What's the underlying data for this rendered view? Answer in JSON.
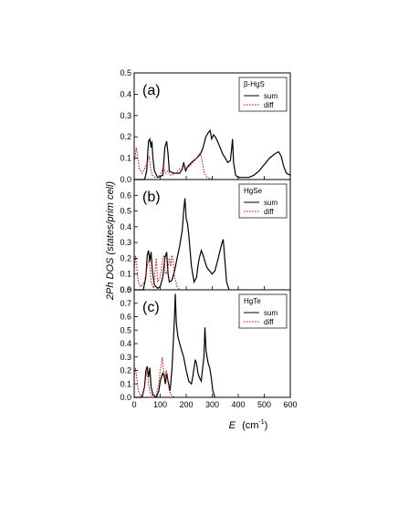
{
  "figure": {
    "ylabel": "2Ph DOS (states/prim cell)",
    "xlabel_main": "E",
    "xlabel_unit": "(cm",
    "xlabel_exp": "-1",
    "xlabel_close": ")"
  },
  "chart_data": [
    {
      "type": "line",
      "panel_label": "(a)",
      "legend_title": "β-HgS",
      "xlim": [
        0,
        600
      ],
      "ylim": [
        0,
        0.5
      ],
      "x_ticks": [
        0,
        100,
        200,
        300,
        400,
        500,
        600
      ],
      "y_ticks": [
        0.0,
        0.1,
        0.2,
        0.3,
        0.4,
        0.5
      ],
      "y_tick_labels": [
        "0.0",
        "0.1",
        "0.2",
        "0.3",
        "0.4",
        "0.5"
      ],
      "series": [
        {
          "name": "sum",
          "color": "#000000",
          "dash": "solid",
          "points": [
            [
              0,
              0
            ],
            [
              40,
              0
            ],
            [
              48,
              0.04
            ],
            [
              55,
              0.18
            ],
            [
              60,
              0.19
            ],
            [
              65,
              0.15
            ],
            [
              68,
              0.18
            ],
            [
              72,
              0.1
            ],
            [
              78,
              0.04
            ],
            [
              90,
              0.01
            ],
            [
              110,
              0.02
            ],
            [
              118,
              0.15
            ],
            [
              125,
              0.18
            ],
            [
              130,
              0.12
            ],
            [
              135,
              0.04
            ],
            [
              150,
              0.03
            ],
            [
              175,
              0.03
            ],
            [
              185,
              0.05
            ],
            [
              190,
              0.08
            ],
            [
              198,
              0.04
            ],
            [
              205,
              0.06
            ],
            [
              220,
              0.08
            ],
            [
              240,
              0.1
            ],
            [
              255,
              0.12
            ],
            [
              265,
              0.15
            ],
            [
              275,
              0.2
            ],
            [
              285,
              0.22
            ],
            [
              292,
              0.23
            ],
            [
              298,
              0.19
            ],
            [
              305,
              0.21
            ],
            [
              312,
              0.2
            ],
            [
              320,
              0.18
            ],
            [
              330,
              0.15
            ],
            [
              340,
              0.12
            ],
            [
              350,
              0.1
            ],
            [
              360,
              0.08
            ],
            [
              370,
              0.09
            ],
            [
              375,
              0.15
            ],
            [
              378,
              0.19
            ],
            [
              382,
              0.08
            ],
            [
              390,
              0.02
            ],
            [
              400,
              0.01
            ],
            [
              420,
              0.01
            ],
            [
              440,
              0.01
            ],
            [
              460,
              0.02
            ],
            [
              480,
              0.04
            ],
            [
              500,
              0.07
            ],
            [
              520,
              0.1
            ],
            [
              540,
              0.12
            ],
            [
              555,
              0.13
            ],
            [
              565,
              0.11
            ],
            [
              575,
              0.06
            ],
            [
              585,
              0.03
            ],
            [
              600,
              0.02
            ]
          ]
        },
        {
          "name": "diff",
          "color": "#cc0000",
          "dash": "dot",
          "points": [
            [
              0,
              0.08
            ],
            [
              8,
              0.15
            ],
            [
              14,
              0.1
            ],
            [
              20,
              0.05
            ],
            [
              30,
              0.03
            ],
            [
              40,
              0.05
            ],
            [
              50,
              0.08
            ],
            [
              58,
              0.11
            ],
            [
              63,
              0.05
            ],
            [
              70,
              0.02
            ],
            [
              80,
              0.01
            ],
            [
              100,
              0.02
            ],
            [
              112,
              0.06
            ],
            [
              120,
              0.03
            ],
            [
              130,
              0.04
            ],
            [
              140,
              0.02
            ],
            [
              160,
              0.03
            ],
            [
              175,
              0.05
            ],
            [
              185,
              0.05
            ],
            [
              192,
              0.07
            ],
            [
              198,
              0.05
            ],
            [
              210,
              0.06
            ],
            [
              225,
              0.08
            ],
            [
              240,
              0.1
            ],
            [
              250,
              0.12
            ],
            [
              258,
              0.11
            ],
            [
              265,
              0.06
            ],
            [
              270,
              0.03
            ],
            [
              280,
              0.01
            ],
            [
              300,
              0
            ]
          ]
        }
      ]
    },
    {
      "type": "line",
      "panel_label": "(b)",
      "legend_title": "HgSe",
      "xlim": [
        0,
        600
      ],
      "ylim": [
        0,
        0.7
      ],
      "x_ticks": [
        0,
        100,
        200,
        300,
        400,
        500,
        600
      ],
      "y_ticks": [
        0.0,
        0.1,
        0.2,
        0.3,
        0.4,
        0.5,
        0.6
      ],
      "y_tick_labels": [
        "0.0",
        "0.1",
        "0.2",
        "0.3",
        "0.4",
        "0.5",
        "0.6"
      ],
      "series": [
        {
          "name": "sum",
          "color": "#000000",
          "dash": "solid",
          "points": [
            [
              0,
              0
            ],
            [
              35,
              0
            ],
            [
              45,
              0.08
            ],
            [
              50,
              0.22
            ],
            [
              55,
              0.25
            ],
            [
              60,
              0.18
            ],
            [
              65,
              0.24
            ],
            [
              70,
              0.12
            ],
            [
              78,
              0.03
            ],
            [
              90,
              0.01
            ],
            [
              100,
              0.02
            ],
            [
              110,
              0.08
            ],
            [
              118,
              0.2
            ],
            [
              125,
              0.24
            ],
            [
              130,
              0.1
            ],
            [
              135,
              0.05
            ],
            [
              145,
              0.06
            ],
            [
              155,
              0.12
            ],
            [
              165,
              0.2
            ],
            [
              175,
              0.28
            ],
            [
              185,
              0.38
            ],
            [
              190,
              0.5
            ],
            [
              195,
              0.58
            ],
            [
              200,
              0.45
            ],
            [
              205,
              0.42
            ],
            [
              210,
              0.35
            ],
            [
              220,
              0.15
            ],
            [
              230,
              0.05
            ],
            [
              240,
              0.08
            ],
            [
              245,
              0.15
            ],
            [
              250,
              0.2
            ],
            [
              258,
              0.25
            ],
            [
              265,
              0.22
            ],
            [
              272,
              0.18
            ],
            [
              280,
              0.14
            ],
            [
              290,
              0.12
            ],
            [
              300,
              0.1
            ],
            [
              310,
              0.12
            ],
            [
              320,
              0.18
            ],
            [
              330,
              0.25
            ],
            [
              338,
              0.3
            ],
            [
              342,
              0.32
            ],
            [
              348,
              0.2
            ],
            [
              355,
              0.05
            ],
            [
              365,
              0
            ]
          ]
        },
        {
          "name": "diff",
          "color": "#cc0000",
          "dash": "dot",
          "points": [
            [
              0,
              0.12
            ],
            [
              5,
              0.22
            ],
            [
              10,
              0.15
            ],
            [
              15,
              0.05
            ],
            [
              25,
              0.02
            ],
            [
              40,
              0.05
            ],
            [
              50,
              0.15
            ],
            [
              58,
              0.2
            ],
            [
              65,
              0.05
            ],
            [
              75,
              0.01
            ],
            [
              80,
              0.12
            ],
            [
              85,
              0.2
            ],
            [
              90,
              0.05
            ],
            [
              100,
              0.08
            ],
            [
              110,
              0.2
            ],
            [
              115,
              0.22
            ],
            [
              120,
              0.1
            ],
            [
              128,
              0.12
            ],
            [
              135,
              0.2
            ],
            [
              140,
              0.15
            ],
            [
              145,
              0.22
            ],
            [
              150,
              0.18
            ],
            [
              155,
              0.08
            ],
            [
              165,
              0.02
            ],
            [
              175,
              0
            ]
          ]
        }
      ]
    },
    {
      "type": "line",
      "panel_label": "(c)",
      "legend_title": "HgTe",
      "xlim": [
        0,
        600
      ],
      "ylim": [
        0,
        0.8
      ],
      "x_ticks": [
        0,
        100,
        200,
        300,
        400,
        500,
        600
      ],
      "y_ticks": [
        0.0,
        0.1,
        0.2,
        0.3,
        0.4,
        0.5,
        0.6,
        0.7,
        0.8
      ],
      "y_tick_labels": [
        "0.0",
        "0.1",
        "0.2",
        "0.3",
        "0.4",
        "0.5",
        "0.6",
        "0.7",
        "0.8"
      ],
      "series": [
        {
          "name": "sum",
          "color": "#000000",
          "dash": "solid",
          "points": [
            [
              0,
              0
            ],
            [
              30,
              0
            ],
            [
              40,
              0.08
            ],
            [
              45,
              0.2
            ],
            [
              50,
              0.23
            ],
            [
              55,
              0.15
            ],
            [
              60,
              0.22
            ],
            [
              65,
              0.08
            ],
            [
              72,
              0.02
            ],
            [
              85,
              0
            ],
            [
              95,
              0.05
            ],
            [
              100,
              0.12
            ],
            [
              105,
              0.15
            ],
            [
              110,
              0.18
            ],
            [
              115,
              0.16
            ],
            [
              120,
              0.1
            ],
            [
              125,
              0.18
            ],
            [
              130,
              0.12
            ],
            [
              138,
              0.05
            ],
            [
              145,
              0.2
            ],
            [
              150,
              0.4
            ],
            [
              155,
              0.6
            ],
            [
              158,
              0.77
            ],
            [
              162,
              0.55
            ],
            [
              168,
              0.45
            ],
            [
              175,
              0.4
            ],
            [
              182,
              0.35
            ],
            [
              190,
              0.3
            ],
            [
              200,
              0.2
            ],
            [
              210,
              0.12
            ],
            [
              220,
              0.1
            ],
            [
              225,
              0.15
            ],
            [
              230,
              0.22
            ],
            [
              235,
              0.28
            ],
            [
              240,
              0.25
            ],
            [
              245,
              0.18
            ],
            [
              250,
              0.15
            ],
            [
              258,
              0.12
            ],
            [
              262,
              0.2
            ],
            [
              268,
              0.3
            ],
            [
              272,
              0.52
            ],
            [
              276,
              0.35
            ],
            [
              280,
              0.3
            ],
            [
              285,
              0.25
            ],
            [
              290,
              0.22
            ],
            [
              296,
              0.15
            ],
            [
              302,
              0.05
            ],
            [
              310,
              0
            ]
          ]
        },
        {
          "name": "diff",
          "color": "#cc0000",
          "dash": "dot",
          "points": [
            [
              0,
              0.15
            ],
            [
              5,
              0.22
            ],
            [
              10,
              0.15
            ],
            [
              15,
              0.05
            ],
            [
              25,
              0.01
            ],
            [
              35,
              0.03
            ],
            [
              45,
              0.15
            ],
            [
              50,
              0.2
            ],
            [
              55,
              0.1
            ],
            [
              62,
              0.03
            ],
            [
              70,
              0.01
            ],
            [
              85,
              0.02
            ],
            [
              95,
              0.1
            ],
            [
              100,
              0.2
            ],
            [
              105,
              0.25
            ],
            [
              108,
              0.3
            ],
            [
              112,
              0.22
            ],
            [
              118,
              0.15
            ],
            [
              123,
              0.2
            ],
            [
              128,
              0.15
            ],
            [
              135,
              0.05
            ],
            [
              145,
              0.01
            ],
            [
              155,
              0
            ]
          ]
        }
      ]
    }
  ]
}
